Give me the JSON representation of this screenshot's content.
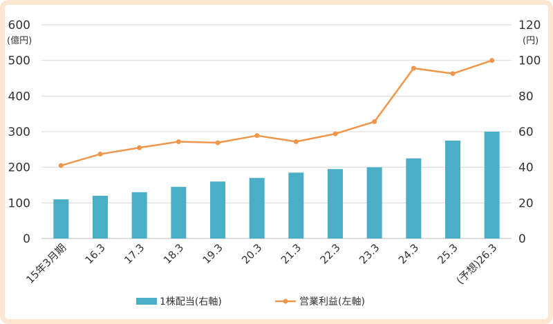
{
  "chart_data": {
    "type": "bar+line",
    "categories": [
      "15年3月期",
      "16.3",
      "17.3",
      "18.3",
      "19.3",
      "20.3",
      "21.3",
      "22.3",
      "23.3",
      "24.3",
      "25.3",
      "(予想)26.3"
    ],
    "series": [
      {
        "name": "1株配当(右軸)",
        "type": "bar",
        "axis": "right",
        "values": [
          22,
          24,
          26,
          29,
          32,
          34,
          37,
          39,
          40,
          45,
          55,
          60
        ]
      },
      {
        "name": "営業利益(左軸)",
        "type": "line",
        "axis": "left",
        "values": [
          205,
          237,
          255,
          272,
          269,
          289,
          272,
          294,
          328,
          478,
          463,
          500
        ]
      }
    ],
    "left_axis": {
      "unit": "(億円)",
      "min": 0,
      "max": 600,
      "ticks": [
        "0",
        "100",
        "200",
        "300",
        "400",
        "500",
        "600"
      ]
    },
    "right_axis": {
      "unit": "(円)",
      "min": 0,
      "max": 120,
      "ticks": [
        "0",
        "20",
        "40",
        "60",
        "80",
        "100",
        "120"
      ]
    },
    "grid": true,
    "legend": "bottom",
    "colors": {
      "bar": "#4aaec6",
      "line": "#f0964a",
      "frame": "#fde6d2"
    }
  }
}
